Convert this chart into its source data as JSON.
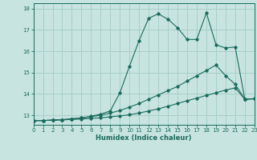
{
  "xlabel": "Humidex (Indice chaleur)",
  "background_color": "#c8e4e0",
  "grid_color": "#a8cfca",
  "line_color": "#1a6b5e",
  "xlim": [
    0,
    23
  ],
  "ylim": [
    12.55,
    18.25
  ],
  "yticks": [
    13,
    14,
    15,
    16,
    17,
    18
  ],
  "xticks": [
    0,
    1,
    2,
    3,
    4,
    5,
    6,
    7,
    8,
    9,
    10,
    11,
    12,
    13,
    14,
    15,
    16,
    17,
    18,
    19,
    20,
    21,
    22,
    23
  ],
  "line1_x": [
    0,
    1,
    2,
    3,
    4,
    5,
    6,
    7,
    8,
    9,
    10,
    11,
    12,
    13,
    14,
    15,
    16,
    17,
    18,
    19,
    20,
    21,
    22,
    23
  ],
  "line1_y": [
    12.75,
    12.75,
    12.77,
    12.78,
    12.8,
    12.82,
    12.85,
    12.88,
    12.92,
    12.97,
    13.02,
    13.1,
    13.2,
    13.3,
    13.42,
    13.55,
    13.68,
    13.8,
    13.93,
    14.05,
    14.18,
    14.28,
    13.75,
    13.77
  ],
  "line2_x": [
    0,
    1,
    2,
    3,
    4,
    5,
    6,
    7,
    8,
    9,
    10,
    11,
    12,
    13,
    14,
    15,
    16,
    17,
    18,
    19,
    20,
    21,
    22,
    23
  ],
  "line2_y": [
    12.75,
    12.75,
    12.77,
    12.79,
    12.83,
    12.87,
    12.93,
    13.0,
    13.1,
    13.22,
    13.38,
    13.55,
    13.75,
    13.95,
    14.15,
    14.35,
    14.6,
    14.85,
    15.1,
    15.35,
    14.85,
    14.45,
    13.75,
    13.77
  ],
  "line3_x": [
    0,
    1,
    2,
    3,
    4,
    5,
    6,
    7,
    8,
    9,
    10,
    11,
    12,
    13,
    14,
    15,
    16,
    17,
    18,
    19,
    20,
    21,
    22,
    23
  ],
  "line3_y": [
    12.75,
    12.75,
    12.77,
    12.79,
    12.83,
    12.87,
    12.95,
    13.05,
    13.2,
    14.05,
    15.3,
    16.5,
    17.55,
    17.75,
    17.5,
    17.1,
    16.55,
    16.55,
    17.8,
    16.3,
    16.15,
    16.2,
    13.75,
    13.77
  ]
}
